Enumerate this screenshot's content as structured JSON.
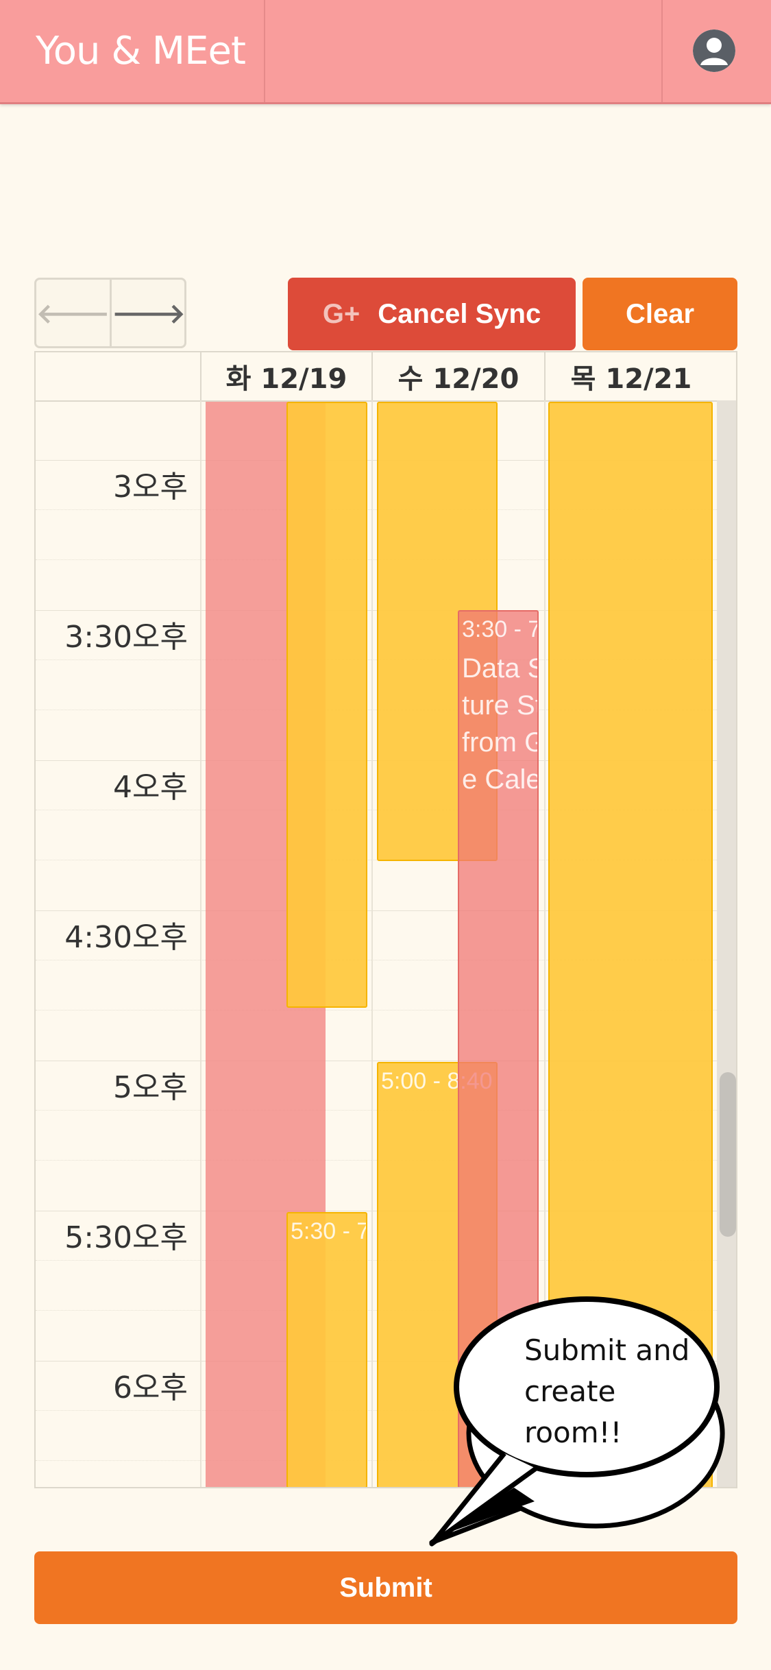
{
  "header": {
    "brand": "You & MEet",
    "avatar_icon": "user-avatar-icon",
    "background": "#f99d9c"
  },
  "toolbar": {
    "prev_icon": "arrow-left-icon",
    "next_icon": "arrow-right-icon",
    "gplus_label": "G+",
    "cancel_sync_label": "Cancel Sync",
    "clear_label": "Clear"
  },
  "calendar": {
    "days": [
      "화 12/19",
      "수 12/20",
      "목 12/21"
    ],
    "time_labels": [
      "3오후",
      "3:30오후",
      "4오후",
      "4:30오후",
      "5오후",
      "5:30오후",
      "6오후"
    ],
    "events": {
      "wed_data_struct_time": "3:30 - 7",
      "wed_data_struct_title": "Data Structure Study from Google Calendar",
      "wed_evening_time": "5:00 - 8:40",
      "tue_evening_time": "5:30 - 7"
    }
  },
  "bubble": {
    "text": "Submit and create room!!"
  },
  "footer": {
    "submit_label": "Submit"
  },
  "colors": {
    "accent": "#f07522",
    "google_red": "#dd4b39",
    "busy_red": "#f28482",
    "available_yellow": "#ffc83c"
  }
}
